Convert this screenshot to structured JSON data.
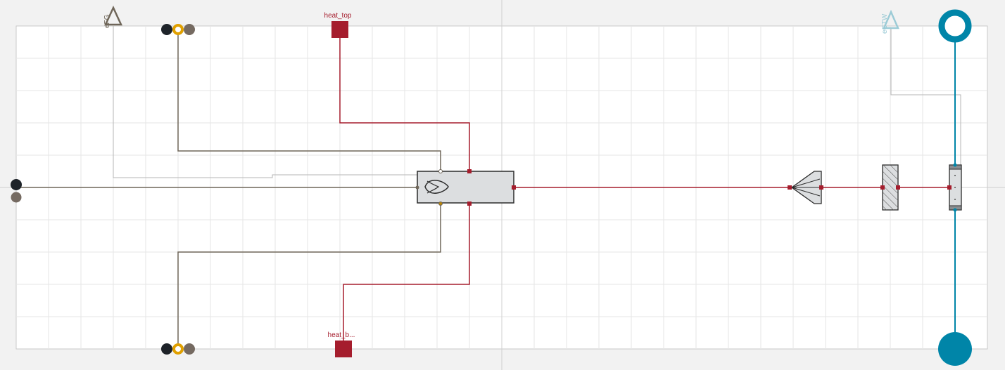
{
  "labels": {
    "heat_top": "heat_top",
    "heat_bottom": "heat_b...",
    "input_fg": "eFG",
    "input_ctw": "eCTW"
  },
  "icons": {
    "fg_input": "triangle-outline-icon",
    "ctw_input": "triangle-outline-icon",
    "top_port": "filled-circle-icon",
    "bottom_port": "filled-circle-icon",
    "burner": "flame-icon",
    "nozzle": "nozzle-icon",
    "wall": "hatched-wall-icon",
    "pipe": "pipe-segment-icon"
  },
  "colors": {
    "heat": "#a51d2d",
    "gas": "#6f6659",
    "fluid": "#0085a8",
    "signal": "#b5b5b5",
    "signal_ctw": "#9ccbd6",
    "canvas": "#ffffff",
    "grid": "#e6e6e6",
    "dark": "#1e2329",
    "orange": "#e0a000",
    "component_fill": "#dcdee0"
  }
}
